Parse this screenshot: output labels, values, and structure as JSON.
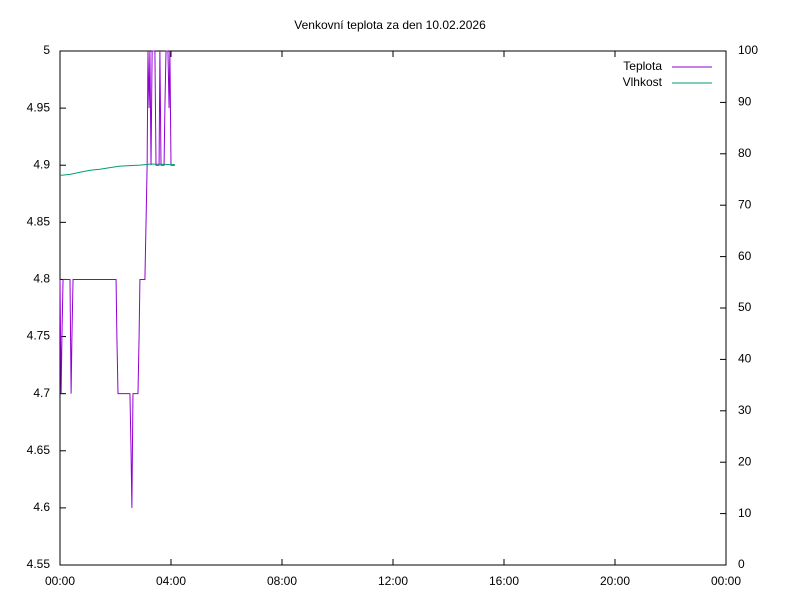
{
  "chart_data": {
    "type": "line",
    "title": "Venkovní teplota za den 10.02.2026",
    "xlim": [
      0,
      24
    ],
    "xticks": [
      {
        "value": 0,
        "label": "00:00"
      },
      {
        "value": 4,
        "label": "04:00"
      },
      {
        "value": 8,
        "label": "08:00"
      },
      {
        "value": 12,
        "label": "12:00"
      },
      {
        "value": 16,
        "label": "16:00"
      },
      {
        "value": 20,
        "label": "20:00"
      },
      {
        "value": 24,
        "label": "00:00"
      }
    ],
    "ylim": [
      4.55,
      5
    ],
    "yticks": [
      4.55,
      4.6,
      4.65,
      4.7,
      4.75,
      4.8,
      4.85,
      4.9,
      4.95,
      5
    ],
    "y2lim": [
      0,
      100
    ],
    "y2ticks": [
      0,
      10,
      20,
      30,
      40,
      50,
      60,
      70,
      80,
      90,
      100
    ],
    "legend": "top-right",
    "series": [
      {
        "name": "Teplota",
        "color": "#9400d3",
        "x": [
          0,
          0.04,
          0.07,
          0.11,
          0.36,
          0.4,
          0.43,
          0.47,
          2.02,
          2.05,
          2.09,
          2.52,
          2.56,
          2.59,
          2.63,
          2.81,
          2.85,
          2.88,
          3.06,
          3.1,
          3.14,
          3.17,
          3.21,
          3.24,
          3.28,
          3.32,
          3.42,
          3.46,
          3.57,
          3.6,
          3.64,
          3.75,
          3.78,
          3.82,
          3.89,
          3.93,
          3.96,
          4.0,
          4.14
        ],
        "values": [
          4.8,
          4.7,
          4.75,
          4.8,
          4.8,
          4.7,
          4.75,
          4.8,
          4.8,
          4.75,
          4.7,
          4.7,
          4.65,
          4.6,
          4.7,
          4.7,
          4.75,
          4.8,
          4.8,
          4.85,
          4.9,
          5,
          4.95,
          5,
          4.9,
          5,
          5,
          4.9,
          4.9,
          5,
          4.9,
          4.9,
          4.95,
          5,
          5,
          4.95,
          5,
          4.9,
          4.9
        ]
      },
      {
        "name": "Vlhkost",
        "color": "#009e73",
        "axis": "y2",
        "x": [
          0,
          0.36,
          0.72,
          1.08,
          1.44,
          1.8,
          2.16,
          2.52,
          2.88,
          3.24,
          3.6,
          3.96,
          4.14
        ],
        "values": [
          75.8,
          76.0,
          76.4,
          76.8,
          77.0,
          77.3,
          77.6,
          77.7,
          77.8,
          78.0,
          78.0,
          77.9,
          77.9
        ]
      }
    ]
  }
}
